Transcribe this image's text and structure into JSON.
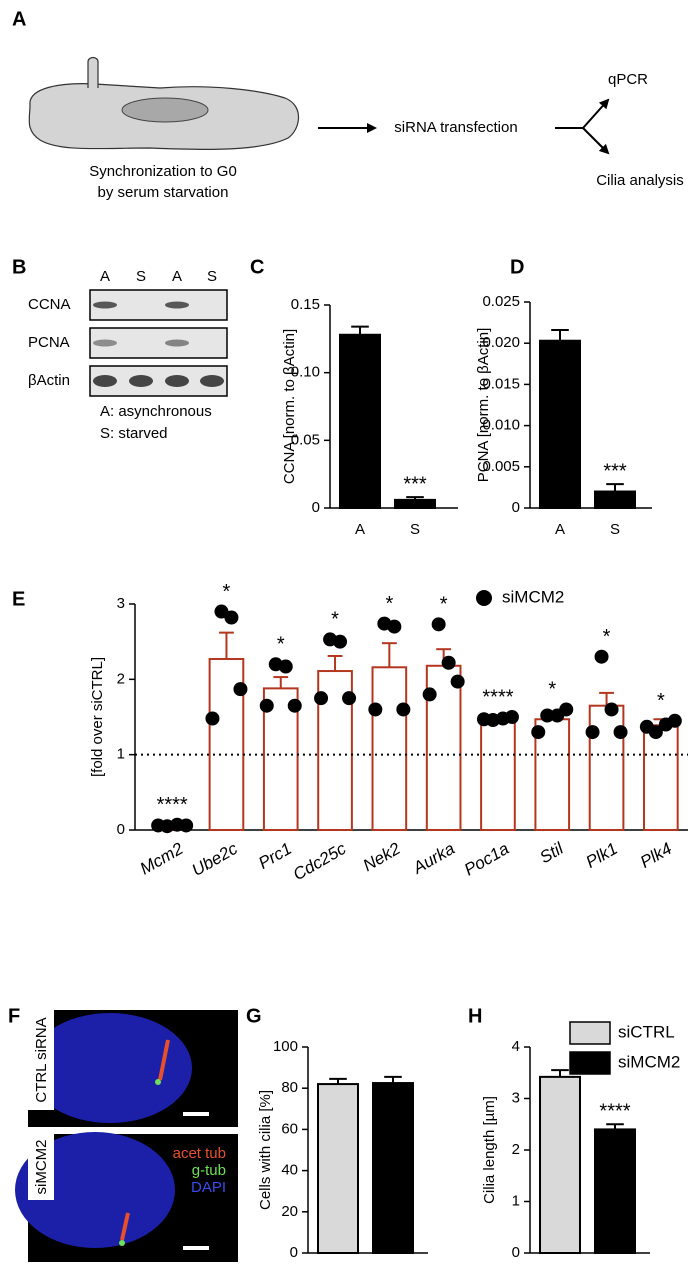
{
  "panel_labels": [
    "A",
    "B",
    "C",
    "D",
    "E",
    "F",
    "G",
    "H"
  ],
  "diagram": {
    "cell_caption": [
      "Synchronization to G0",
      "by serum starvation"
    ],
    "step": "siRNA transfection",
    "outputs": [
      "qPCR",
      "Cilia analysis"
    ]
  },
  "blot": {
    "lanes": [
      "A",
      "S",
      "A",
      "S"
    ],
    "rows": [
      "CCNA",
      "PCNA",
      "βActin"
    ],
    "legend": [
      "A: asynchronous",
      "S: starved"
    ]
  },
  "images": {
    "rows": [
      "CTRL siRNA",
      "siMCM2"
    ],
    "channels": [
      {
        "name": "acet tub",
        "color": "#e8502a"
      },
      {
        "name": "g-tub",
        "color": "#6ee05a"
      },
      {
        "name": "DAPI",
        "color": "#3a4cf0"
      }
    ]
  },
  "chart_data": [
    {
      "type": "bar",
      "y_label": "CCNA [norm. to βActin]",
      "categories": [
        "A",
        "S"
      ],
      "values": [
        0.128,
        0.006
      ],
      "errors": [
        0.006,
        0.002
      ],
      "color": "#000000",
      "significance": [
        null,
        "***"
      ],
      "ylim": [
        0,
        0.15
      ],
      "yticks": [
        0,
        0.05,
        {
          "value": 0.1,
          "label": "0.10"
        },
        0.15
      ]
    },
    {
      "type": "bar",
      "y_label": "PCNA [norm. to βActin]",
      "categories": [
        "A",
        "S"
      ],
      "values": [
        0.0203,
        0.002
      ],
      "errors": [
        0.0013,
        0.0009
      ],
      "color": "#000000",
      "significance": [
        null,
        "***"
      ],
      "ylim": [
        0,
        0.025
      ],
      "yticks": [
        0,
        0.005,
        {
          "value": 0.01,
          "label": "0.010"
        },
        0.015,
        {
          "value": 0.02,
          "label": "0.020"
        },
        0.025
      ]
    },
    {
      "type": "bar",
      "y_label": "[fold over siCTRL]",
      "categories": [
        "Mcm2",
        "Ube2c",
        "Prc1",
        "Cdc25c",
        "Nek2",
        "Aurka",
        "Poc1a",
        "Stil",
        "Plk1",
        "Plk4"
      ],
      "values": [
        0.06,
        2.27,
        1.88,
        2.11,
        2.16,
        2.18,
        1.47,
        1.47,
        1.65,
        1.39
      ],
      "errors": [
        0.01,
        0.35,
        0.15,
        0.2,
        0.32,
        0.22,
        0.03,
        0.08,
        0.17,
        0.08
      ],
      "color": "#b5361f",
      "fill": "#ffffff",
      "significance": [
        "****",
        "*",
        "*",
        "*",
        "*",
        "*",
        "****",
        "*",
        "*",
        "*"
      ],
      "points": {
        "name": "siMCM2",
        "color": "#000000",
        "values": [
          [
            0.06,
            0.05,
            0.07,
            0.06
          ],
          [
            1.48,
            2.9,
            2.82,
            1.87
          ],
          [
            1.65,
            2.2,
            2.17,
            1.65
          ],
          [
            1.75,
            2.53,
            2.5,
            1.75
          ],
          [
            1.6,
            2.74,
            2.7,
            1.6
          ],
          [
            1.8,
            2.73,
            2.22,
            1.97
          ],
          [
            1.47,
            1.46,
            1.48,
            1.5
          ],
          [
            1.3,
            1.52,
            1.52,
            1.6
          ],
          [
            1.3,
            2.3,
            1.6,
            1.3
          ],
          [
            1.37,
            1.3,
            1.4,
            1.45
          ]
        ]
      },
      "reference_line": 1,
      "ylim": [
        0,
        3
      ],
      "yticks": [
        0,
        1,
        2,
        3
      ]
    },
    {
      "type": "bar",
      "y_label": "Cells with cilia [%]",
      "series": [
        {
          "color": "#d9d9d9",
          "values": [
            82
          ],
          "errors": [
            2.5
          ]
        },
        {
          "color": "#000000",
          "values": [
            82.5
          ],
          "errors": [
            3
          ]
        }
      ],
      "ylim": [
        0,
        100
      ],
      "yticks": [
        0,
        20,
        40,
        60,
        80,
        100
      ]
    },
    {
      "type": "bar",
      "y_label": "Cilia length [µm]",
      "series": [
        {
          "name": "siCTRL",
          "color": "#d9d9d9",
          "values": [
            3.42
          ],
          "errors": [
            0.13
          ]
        },
        {
          "name": "siMCM2",
          "color": "#000000",
          "values": [
            2.4
          ],
          "errors": [
            0.1
          ],
          "significance": [
            "****"
          ]
        }
      ],
      "ylim": [
        0,
        4
      ],
      "yticks": [
        0,
        1,
        2,
        3,
        4
      ]
    }
  ]
}
